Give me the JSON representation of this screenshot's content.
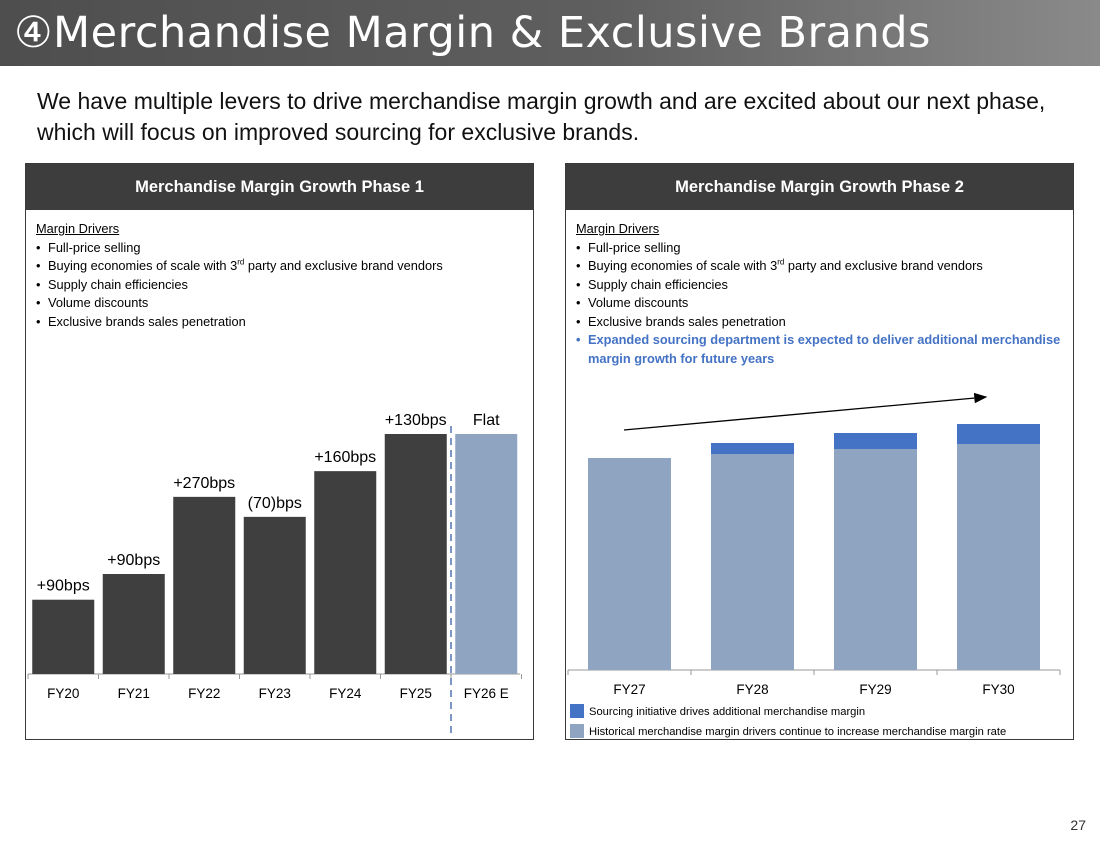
{
  "title": "④Merchandise Margin & Exclusive Brands",
  "subtitle": "We have multiple levers to drive merchandise margin growth and are excited about our next phase, which will focus on improved sourcing for exclusive brands.",
  "page_number": "27",
  "colors": {
    "dark_bar": "#3f3f3f",
    "light_bar": "#8ea4c0",
    "accent_blue": "#4472c4",
    "header_bg": "#3d3d3d"
  },
  "phase1": {
    "header": "Merchandise Margin Growth Phase 1",
    "drivers_heading": "Margin Drivers",
    "drivers": [
      {
        "text": "Full-price selling"
      },
      {
        "pre": "Buying economies of scale with 3",
        "sup": "rd",
        "post": " party and exclusive brand vendors"
      },
      {
        "text": "Supply chain efficiencies"
      },
      {
        "text": "Volume discounts"
      },
      {
        "text": "Exclusive brands sales penetration"
      }
    ]
  },
  "phase2": {
    "header": "Merchandise Margin Growth Phase 2",
    "drivers_heading": "Margin Drivers",
    "drivers": [
      {
        "text": "Full-price selling"
      },
      {
        "pre": "Buying economies of scale with 3",
        "sup": "rd",
        "post": " party and exclusive brand vendors"
      },
      {
        "text": "Supply chain efficiencies"
      },
      {
        "text": "Volume discounts"
      },
      {
        "text": "Exclusive brands sales penetration"
      }
    ],
    "highlight_driver": "Expanded sourcing department is expected to deliver additional merchandise margin growth for future years"
  },
  "chart_data": [
    {
      "type": "bar",
      "title": "Merchandise Margin Growth Phase 1",
      "categories": [
        "FY20",
        "FY21",
        "FY22",
        "FY23",
        "FY24",
        "FY25",
        "FY26 E"
      ],
      "values": [
        90,
        180,
        450,
        380,
        540,
        670,
        670
      ],
      "data_labels": [
        "+90bps",
        "+90bps",
        "+270bps",
        "(70)bps",
        "+160bps",
        "+130bps",
        "Flat"
      ],
      "estimate_index": 6,
      "units": "cumulative merchandise margin change (bps, relative to a base)",
      "ylim": [
        -170,
        740
      ],
      "xlabel": "",
      "ylabel": ""
    },
    {
      "type": "bar",
      "stacked": true,
      "title": "Merchandise Margin Growth Phase 2",
      "categories": [
        "FY27",
        "FY28",
        "FY29",
        "FY30"
      ],
      "series": [
        {
          "name": "Historical merchandise margin drivers continue to increase merchandise margin rate",
          "values": [
            212,
            216,
            221,
            226
          ]
        },
        {
          "name": "Sourcing initiative drives additional merchandise margin",
          "values": [
            0,
            11,
            16,
            20
          ]
        }
      ],
      "ylim": [
        0,
        270
      ],
      "trend_arrow": "increasing",
      "xlabel": "",
      "ylabel": ""
    }
  ]
}
